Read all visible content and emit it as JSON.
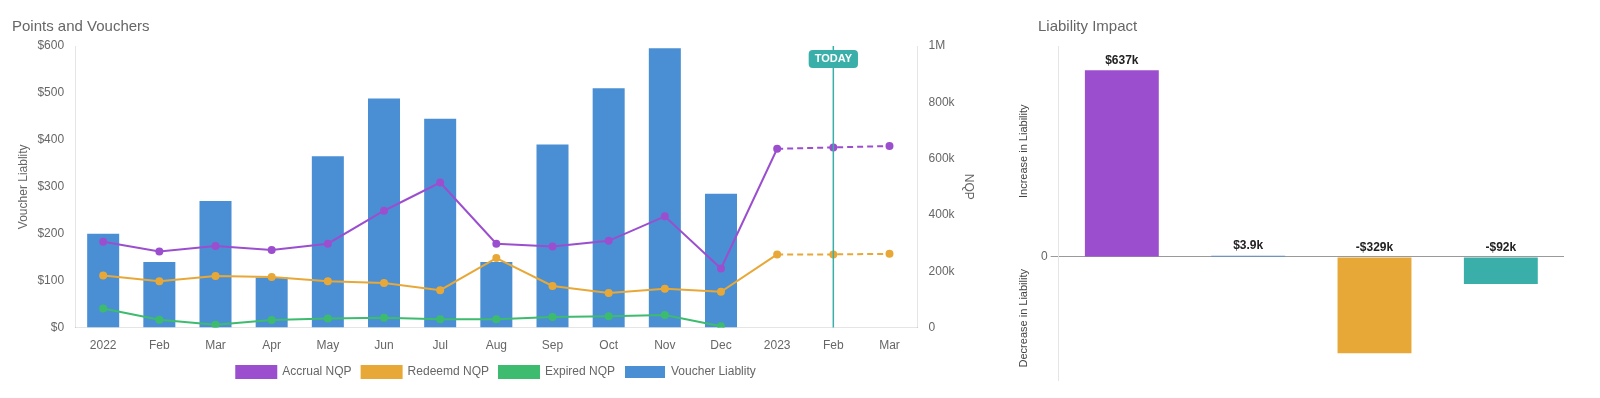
{
  "chart_data": [
    {
      "type": "bar",
      "title": "Points and Vouchers",
      "categories": [
        "2022",
        "Feb",
        "Mar",
        "Apr",
        "May",
        "Jun",
        "Jul",
        "Aug",
        "Sep",
        "Oct",
        "Nov",
        "Dec",
        "2023",
        "Feb",
        "Mar"
      ],
      "series": [
        {
          "name": "Voucher Liablity",
          "type": "bar",
          "color": "#4a8fd4",
          "values": [
            200,
            140,
            270,
            107,
            365,
            488,
            445,
            140,
            390,
            510,
            595,
            285,
            null,
            null,
            null
          ]
        },
        {
          "name": "Accrual NQP",
          "type": "line",
          "color": "#9b4fcf",
          "marker": "circle",
          "axis": "y2",
          "values": [
            305000,
            270000,
            290000,
            276000,
            298000,
            415000,
            515000,
            298000,
            288000,
            308000,
            395000,
            210000,
            635000,
            640000,
            645000
          ]
        },
        {
          "name": "Redeemd NQP",
          "type": "line",
          "color": "#e8a838",
          "marker": "circle",
          "axis": "y2",
          "values": [
            185000,
            165000,
            183000,
            180000,
            165000,
            158000,
            133000,
            247000,
            148000,
            123000,
            138000,
            127000,
            260000,
            260000,
            262000
          ]
        },
        {
          "name": "Expired NQP",
          "type": "line",
          "color": "#3dbb6e",
          "marker": "circle",
          "axis": "y2",
          "values": [
            68000,
            28000,
            10000,
            27000,
            32000,
            35000,
            30000,
            30000,
            38000,
            40000,
            45000,
            5000,
            null,
            null,
            null
          ]
        }
      ],
      "y_label": "Voucher Liablity",
      "y2_label": "NQP",
      "ylim": [
        0,
        600
      ],
      "yticks": [
        {
          "value": 0,
          "label": "$0"
        },
        {
          "value": 100,
          "label": "$100"
        },
        {
          "value": 200,
          "label": "$200"
        },
        {
          "value": 300,
          "label": "$300"
        },
        {
          "value": 400,
          "label": "$400"
        },
        {
          "value": 500,
          "label": "$500"
        },
        {
          "value": 600,
          "label": "$600"
        }
      ],
      "y2lim": [
        0,
        1000000
      ],
      "y2ticks": [
        0,
        {
          "value": 200000,
          "label": "200k"
        },
        {
          "value": 400000,
          "label": "400k"
        },
        {
          "value": 600000,
          "label": "600k"
        },
        {
          "value": 800000,
          "label": "800k"
        },
        {
          "value": 1000000,
          "label": "1M"
        }
      ],
      "grid": false,
      "legend": "bottom",
      "annotations": [
        {
          "text": "TODAY",
          "x": 13,
          "color": "#3aafa9"
        }
      ]
    },
    {
      "type": "bar",
      "title": "Liability Impact",
      "categories": [
        null,
        null,
        null,
        null
      ],
      "values": [
        637,
        3.9,
        -329,
        -92
      ],
      "value_labels": [
        "$637k",
        "$3.9k",
        "-$329k",
        "-$92k"
      ],
      "colors": [
        "#9b4fcf",
        "#4a8fd4",
        "#e8a838",
        "#3aafa9"
      ],
      "data_labels": true,
      "ylim": [
        -420,
        720
      ],
      "yticks": [
        0
      ],
      "tick_labels": "y",
      "grid": true,
      "annotations": [
        {
          "text": "Increase in Liability"
        },
        {
          "text": "Decrease in Liability"
        }
      ]
    }
  ]
}
